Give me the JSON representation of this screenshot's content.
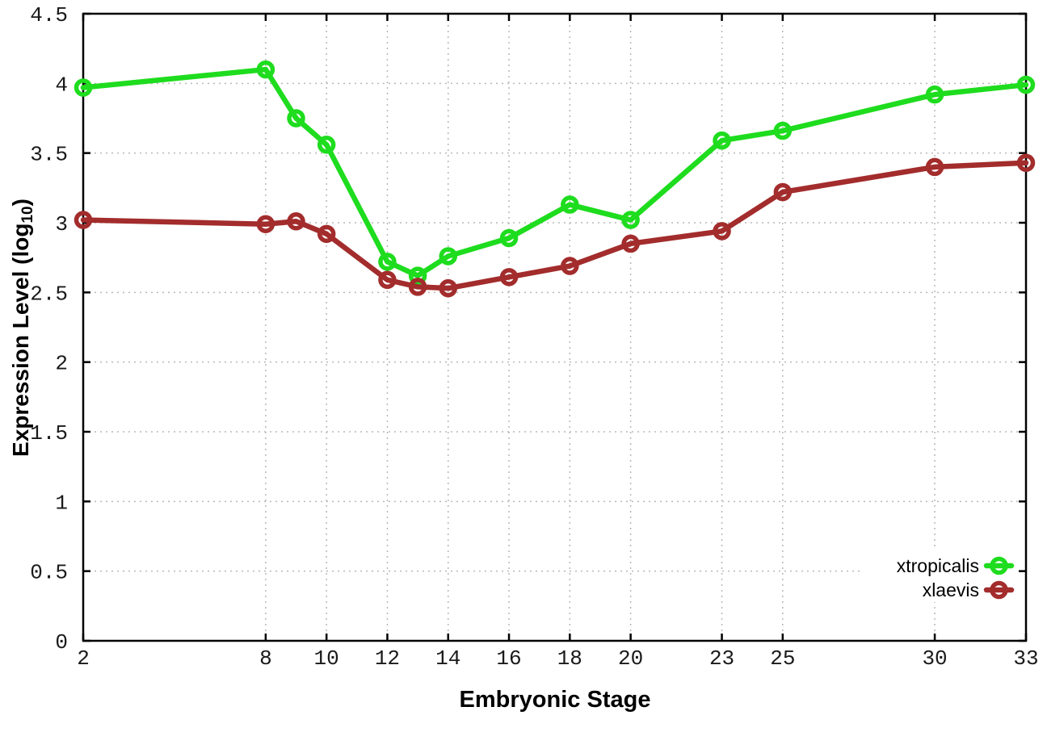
{
  "chart_data": {
    "type": "line",
    "title": "",
    "xlabel": "Embryonic Stage",
    "ylabel": "Expression Level (log10)",
    "ylabel_parts": {
      "pre": "Expression Level (log",
      "sub": "10",
      "post": ")"
    },
    "xlim": [
      2,
      33
    ],
    "ylim": [
      0,
      4.5
    ],
    "xticks": [
      2,
      8,
      10,
      12,
      14,
      16,
      18,
      20,
      23,
      25,
      30,
      33
    ],
    "yticks": [
      0,
      0.5,
      1,
      1.5,
      2,
      2.5,
      3,
      3.5,
      4,
      4.5
    ],
    "grid": true,
    "grid_style": "dotted",
    "legend_position": "inside-bottom-right",
    "x": [
      2,
      8,
      9,
      10,
      12,
      13,
      14,
      16,
      18,
      20,
      23,
      25,
      30,
      33
    ],
    "series": [
      {
        "name": "xtropicalis",
        "color": "#1edc1e",
        "marker": "open-circle",
        "values": [
          3.97,
          4.1,
          3.75,
          3.56,
          2.72,
          2.62,
          2.76,
          2.89,
          3.13,
          3.02,
          3.59,
          3.66,
          3.92,
          3.99
        ]
      },
      {
        "name": "xlaevis",
        "color": "#a32c2c",
        "marker": "open-circle",
        "values": [
          3.02,
          2.99,
          3.01,
          2.92,
          2.59,
          2.54,
          2.53,
          2.61,
          2.69,
          2.85,
          2.94,
          3.22,
          3.4,
          3.43
        ]
      }
    ],
    "colors": {
      "grid": "#b8b8b8",
      "border": "#000000",
      "tick_label": "#1a1a1a",
      "background": "#ffffff"
    }
  }
}
